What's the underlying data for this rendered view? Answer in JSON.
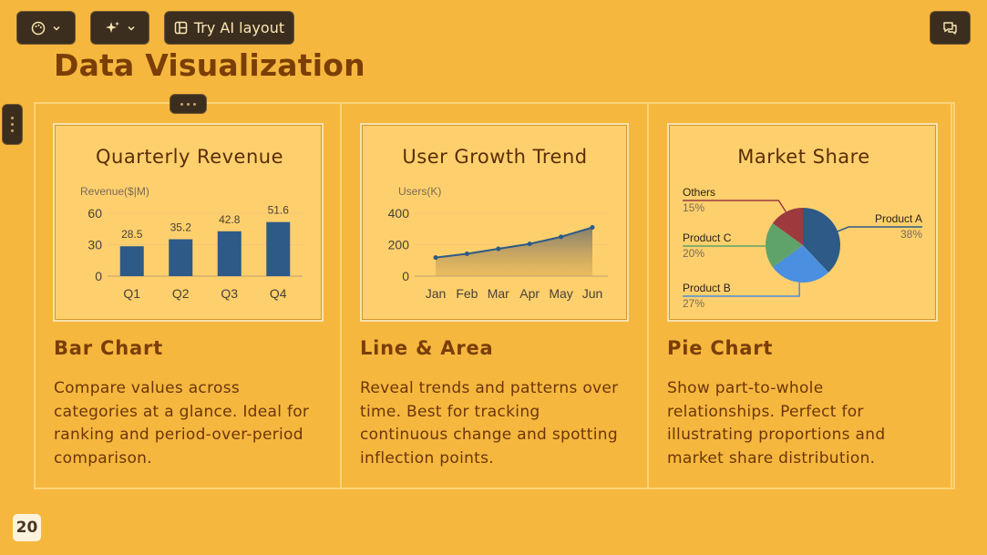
{
  "toolbar": {
    "ai_layout_label": "Try AI layout"
  },
  "page": {
    "title": "Data Visualization",
    "page_number": "20"
  },
  "cards": [
    {
      "heading": "Bar Chart",
      "description": "Compare values across categories at a glance. Ideal for ranking and period-over-period comparison."
    },
    {
      "heading": "Line & Area",
      "description": "Reveal trends and patterns over time. Best for tracking continuous change and spotting inflection points."
    },
    {
      "heading": "Pie Chart",
      "description": "Show part-to-whole relationships. Perfect for illustrating proportions and market share distribution."
    }
  ],
  "colors": {
    "background": "#f6b73f",
    "card": "#fed06d",
    "bar": "#2d5a86",
    "title": "#7a3e06"
  },
  "chart_data": [
    {
      "type": "bar",
      "title": "Quarterly Revenue",
      "ylabel": "Revenue($|M)",
      "categories": [
        "Q1",
        "Q2",
        "Q3",
        "Q4"
      ],
      "values": [
        28.5,
        35.2,
        42.8,
        51.6
      ],
      "value_labels": [
        "28.5",
        "35.2",
        "42.8",
        "51.6"
      ],
      "yticks": [
        0,
        30,
        60
      ],
      "ylim": [
        0,
        60
      ],
      "grid": true
    },
    {
      "type": "area",
      "title": "User Growth Trend",
      "ylabel": "Users(K)",
      "categories": [
        "Jan",
        "Feb",
        "Mar",
        "Apr",
        "May",
        "Jun"
      ],
      "values": [
        118,
        142,
        174,
        205,
        250,
        310
      ],
      "yticks": [
        0,
        200,
        400
      ],
      "ylim": [
        0,
        400
      ],
      "grid": true
    },
    {
      "type": "pie",
      "title": "Market Share",
      "slices": [
        {
          "name": "Product A",
          "value": 38,
          "label": "38%",
          "color": "#2d5a86"
        },
        {
          "name": "Product B",
          "value": 27,
          "label": "27%",
          "color": "#4a8fe0"
        },
        {
          "name": "Product C",
          "value": 20,
          "label": "20%",
          "color": "#5fa36a"
        },
        {
          "name": "Others",
          "value": 15,
          "label": "15%",
          "color": "#9c3a3e"
        }
      ]
    }
  ]
}
